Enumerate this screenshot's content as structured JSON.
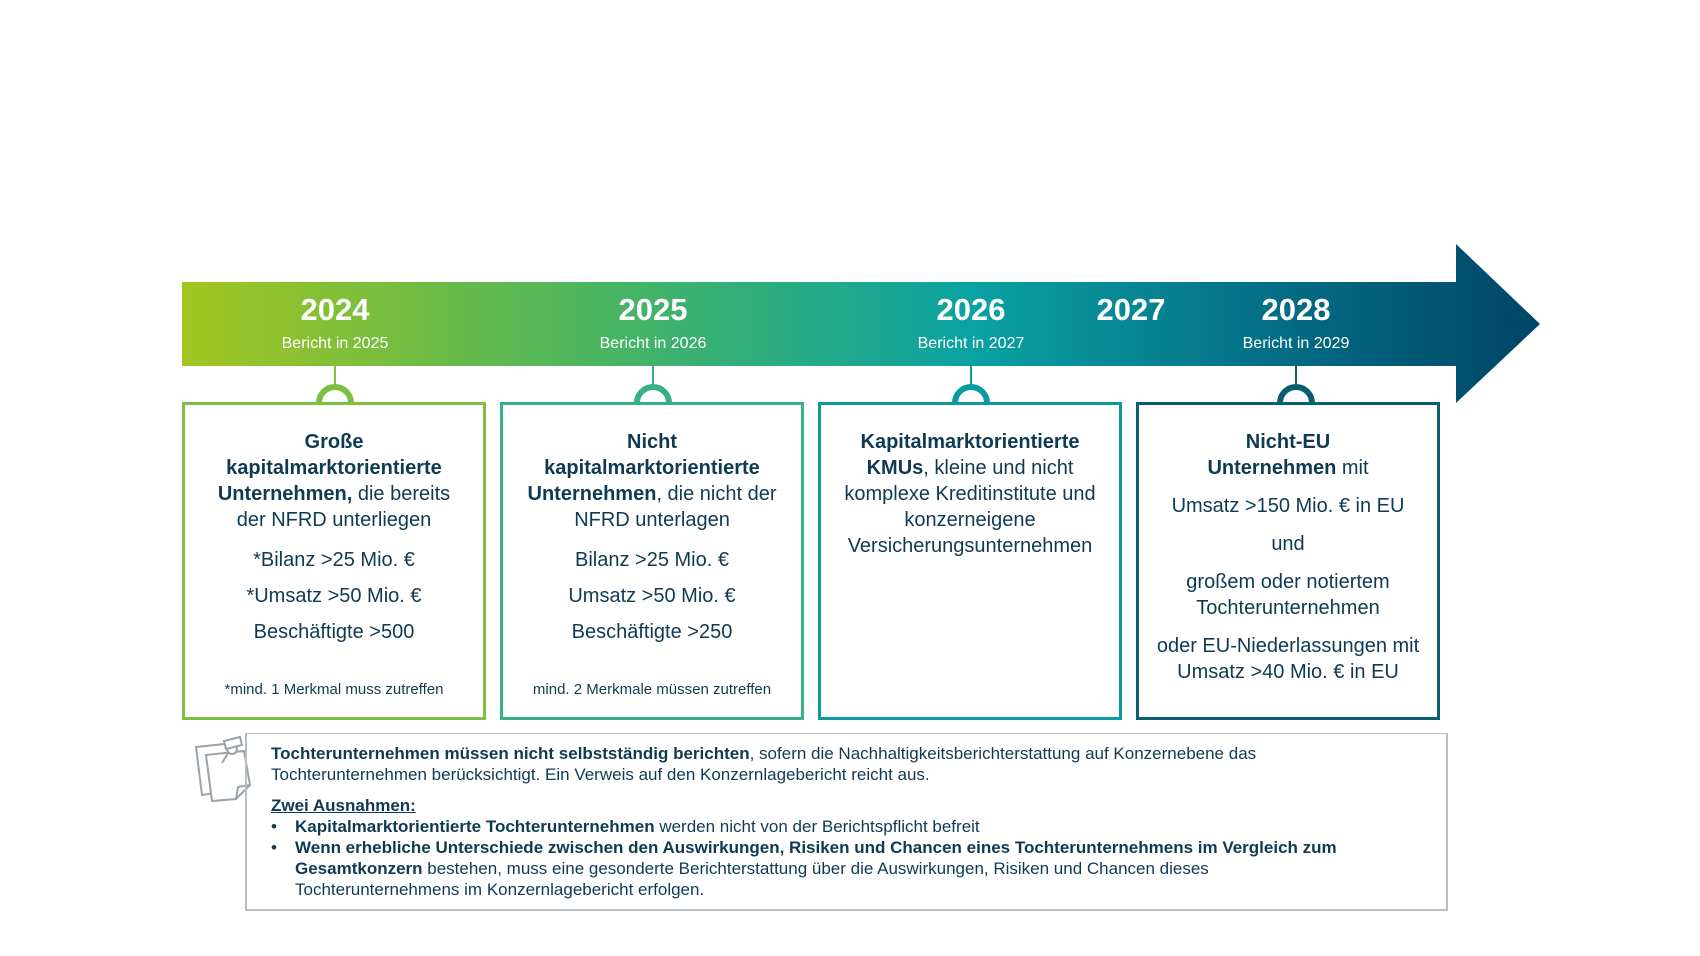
{
  "colors": {
    "gradient_start": "#a3c520",
    "gradient_mid": "#0aa2a2",
    "gradient_end": "#004565",
    "card_1": "#7dbf41",
    "card_2": "#35b08a",
    "card_3": "#0b9aa2",
    "card_4": "#0b5e72",
    "text": "#0f3a52",
    "info_border": "#b9bec3"
  },
  "timeline": {
    "markers": [
      {
        "year": "2024",
        "report": "Bericht in 2025"
      },
      {
        "year": "2025",
        "report": "Bericht in 2026"
      },
      {
        "year": "2026",
        "report": "Bericht in 2027"
      },
      {
        "year": "2027"
      },
      {
        "year": "2028",
        "report": "Bericht in 2029"
      }
    ]
  },
  "cards": [
    {
      "title_bold_1": "Große",
      "title_bold_2": "kapitalmarktorientierte",
      "title_bold_3": "Unternehmen,",
      "title_rest": " die bereits",
      "line_4": "der NFRD unterliegen",
      "criteria": [
        "*Bilanz >25 Mio. €",
        "*Umsatz >50 Mio. €",
        "Beschäftigte >500"
      ],
      "note": "*mind. 1 Merkmal muss zutreffen"
    },
    {
      "title_bold_1": "Nicht",
      "title_bold_2": "kapitalmarktorientierte",
      "title_bold_3": "Unternehmen",
      "title_rest": ", die nicht der",
      "line_4": "NFRD unterlagen",
      "criteria": [
        "Bilanz >25 Mio. €",
        "Umsatz >50 Mio. €",
        "Beschäftigte >250"
      ],
      "note": "mind. 2 Merkmale müssen zutreffen"
    },
    {
      "title_bold_1": "Kapitalmarktorientierte",
      "title_bold_2": "KMUs",
      "title_rest_2": ", kleine und nicht",
      "line_3": "komplexe Kreditinstitute und",
      "line_4": "konzerneigene",
      "line_5": "Versicherungsunternehmen"
    },
    {
      "title_bold_1": "Nicht-EU",
      "title_bold_2": "Unternehmen",
      "title_rest_2": " mit",
      "line_a": "Umsatz >150 Mio. € in EU",
      "line_b": "und",
      "line_c1": "großem oder notiertem",
      "line_c2": "Tochterunternehmen",
      "line_d1": "oder EU-Niederlassungen mit",
      "line_d2": "Umsatz >40 Mio. € in EU"
    }
  ],
  "info": {
    "icon": "sticky-note-pin-icon",
    "p1_bold": "Tochterunternehmen müssen nicht selbstständig berichten",
    "p1_rest_1": ", sofern die Nachhaltigkeitsberichterstattung auf Konzernebene das",
    "p1_rest_2": "Tochterunternehmen berücksichtigt. Ein Verweis auf den Konzernlagebericht reicht aus.",
    "exceptions_title": "Zwei Ausnahmen:",
    "bullet_char": "•",
    "b1_bold": "Kapitalmarktorientierte Tochterunternehmen",
    "b1_rest": " werden nicht von der Berichtspflicht befreit",
    "b2_bold_1": "Wenn erhebliche Unterschiede zwischen den Auswirkungen, Risiken und Chancen eines Tochterunternehmens im Vergleich zum",
    "b2_bold_2": "Gesamtkonzern",
    "b2_rest_1": " bestehen, muss eine gesonderte Berichterstattung über die Auswirkungen, Risiken und Chancen dieses",
    "b2_rest_2": "Tochterunternehmens im Konzernlagebericht erfolgen."
  }
}
